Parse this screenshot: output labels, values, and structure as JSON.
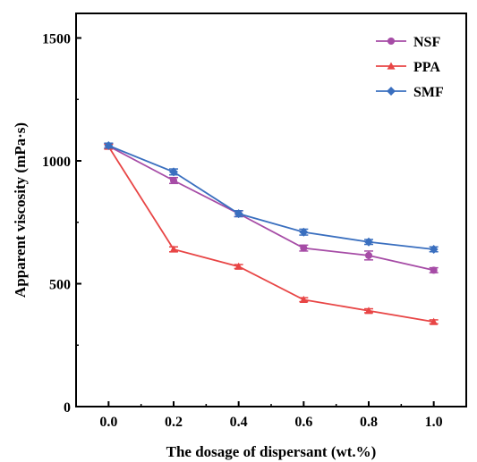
{
  "chart_data": {
    "type": "line",
    "xlabel": "The dosage of  dispersant (wt.%)",
    "ylabel": "Apparent viscosity (mPa·s)",
    "x": [
      0.0,
      0.2,
      0.4,
      0.6,
      0.8,
      1.0
    ],
    "x_tick_labels": [
      "0.0",
      "0.2",
      "0.4",
      "0.6",
      "0.8",
      "1.0"
    ],
    "y_ticks": [
      0,
      500,
      1000,
      1500
    ],
    "y_tick_labels": [
      "0",
      "500",
      "1000",
      "1500"
    ],
    "xlim": [
      -0.1,
      1.1
    ],
    "ylim": [
      0,
      1600
    ],
    "grid": false,
    "legend_position": "top-right",
    "series": [
      {
        "name": "NSF",
        "color": "#a64ca6",
        "marker": "circle",
        "values": [
          1060,
          920,
          785,
          645,
          615,
          555
        ],
        "error": [
          10,
          12,
          12,
          12,
          18,
          10
        ]
      },
      {
        "name": "PPA",
        "color": "#e84545",
        "marker": "triangle",
        "values": [
          1058,
          640,
          570,
          435,
          390,
          345
        ],
        "error": [
          10,
          10,
          8,
          8,
          8,
          8
        ]
      },
      {
        "name": "SMF",
        "color": "#3a6fbf",
        "marker": "diamond",
        "values": [
          1062,
          955,
          785,
          710,
          670,
          640
        ],
        "error": [
          10,
          12,
          12,
          12,
          10,
          10
        ]
      }
    ]
  }
}
